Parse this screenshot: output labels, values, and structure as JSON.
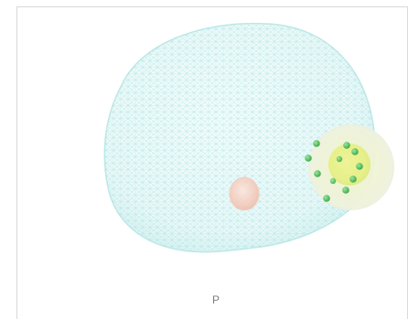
{
  "view": {
    "orientation_label": "P"
  },
  "scene": {
    "mesh": {
      "kind": "wireframe-mesh",
      "color": "#8fd9d7",
      "opacity": "light"
    },
    "lesion_marker": {
      "color": "#f4c7b6"
    },
    "target_sphere": {
      "outer_color": "#eef3c6",
      "inner_color": "#e4ef7b"
    },
    "markers": {
      "color": "#58bf63",
      "count": 11
    }
  },
  "colors": {
    "border": "#d9d9d9",
    "label": "#7d7d7d",
    "background": "#ffffff"
  }
}
